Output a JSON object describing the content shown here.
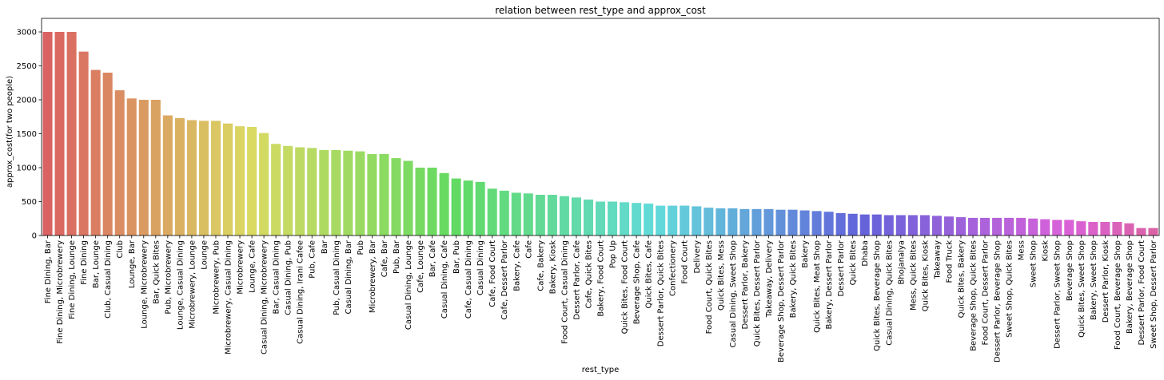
{
  "chart_data": {
    "type": "bar",
    "title": "relation between rest_type and approx_cost",
    "xlabel": "rest_type",
    "ylabel": "approx_cost(for two people)",
    "ylim": [
      0,
      3200
    ],
    "yticks": [
      0,
      500,
      1000,
      1500,
      2000,
      2500,
      3000
    ],
    "grid": false,
    "palette": "husl",
    "categories": [
      "Fine Dining, Bar",
      "Fine Dining, Microbrewery",
      "Fine Dining, Lounge",
      "Fine Dining",
      "Bar, Lounge",
      "Club, Casual Dining",
      "Club",
      "Lounge, Bar",
      "Lounge, Microbrewery",
      "Bar, Quick Bites",
      "Pub, Microbrewery",
      "Lounge, Casual Dining",
      "Microbrewery, Lounge",
      "Lounge",
      "Microbrewery, Pub",
      "Microbrewery, Casual Dining",
      "Microbrewery",
      "Lounge, Cafe",
      "Casual Dining, Microbrewery",
      "Bar, Casual Dining",
      "Casual Dining, Pub",
      "Casual Dining, Irani Cafee",
      "Pub, Cafe",
      "Bar",
      "Pub, Casual Dining",
      "Casual Dining, Bar",
      "Pub",
      "Microbrewery, Bar",
      "Cafe, Bar",
      "Pub, Bar",
      "Casual Dining, Lounge",
      "Cafe, Lounge",
      "Bar, Cafe",
      "Casual Dining, Cafe",
      "Bar, Pub",
      "Cafe, Casual Dining",
      "Casual Dining",
      "Cafe, Food Court",
      "Cafe, Dessert Parlor",
      "Bakery, Cafe",
      "Cafe",
      "Cafe, Bakery",
      "Bakery, Kiosk",
      "Food Court, Casual Dining",
      "Dessert Parlor, Cafe",
      "Cafe, Quick Bites",
      "Bakery, Food Court",
      "Pop Up",
      "Quick Bites, Food Court",
      "Beverage Shop, Cafe",
      "Quick Bites, Cafe",
      "Dessert Parlor, Quick Bites",
      "Confectionery",
      "Food Court",
      "Delivery",
      "Food Court, Quick Bites",
      "Quick Bites, Mess",
      "Casual Dining, Sweet Shop",
      "Dessert Parlor, Bakery",
      "Quick Bites, Dessert Parlor",
      "Takeaway, Delivery",
      "Beverage Shop, Dessert Parlor",
      "Bakery, Quick Bites",
      "Bakery",
      "Quick Bites, Meat Shop",
      "Bakery, Dessert Parlor",
      "Dessert Parlor",
      "Quick Bites",
      "Dhaba",
      "Quick Bites, Beverage Shop",
      "Casual Dining, Quick Bites",
      "Bhojanalya",
      "Mess, Quick Bites",
      "Quick Bites, Kiosk",
      "Takeaway",
      "Food Truck",
      "Quick Bites, Bakery",
      "Beverage Shop, Quick Bites",
      "Food Court, Dessert Parlor",
      "Dessert Parlor, Beverage Shop",
      "Sweet Shop, Quick Bites",
      "Mess",
      "Sweet Shop",
      "Kiosk",
      "Dessert Parlor, Sweet Shop",
      "Beverage Shop",
      "Quick Bites, Sweet Shop",
      "Bakery, Sweet Shop",
      "Dessert Parlor, Kiosk",
      "Food Court, Beverage Shop",
      "Bakery, Beverage Shop",
      "Dessert Parlor, Food Court",
      "Sweet Shop, Dessert Parlor"
    ],
    "values": [
      3000,
      3000,
      3000,
      2710,
      2440,
      2400,
      2140,
      2020,
      2000,
      2000,
      1770,
      1730,
      1700,
      1690,
      1690,
      1650,
      1610,
      1600,
      1510,
      1350,
      1320,
      1300,
      1290,
      1260,
      1260,
      1250,
      1240,
      1200,
      1200,
      1140,
      1100,
      1000,
      1000,
      920,
      840,
      810,
      790,
      690,
      660,
      630,
      620,
      600,
      600,
      580,
      560,
      530,
      500,
      500,
      490,
      480,
      470,
      440,
      440,
      440,
      430,
      410,
      400,
      400,
      390,
      390,
      390,
      380,
      380,
      370,
      360,
      350,
      330,
      320,
      310,
      310,
      300,
      300,
      300,
      300,
      290,
      280,
      270,
      260,
      260,
      260,
      260,
      260,
      250,
      240,
      230,
      230,
      210,
      200,
      200,
      200,
      180,
      110,
      110
    ]
  }
}
